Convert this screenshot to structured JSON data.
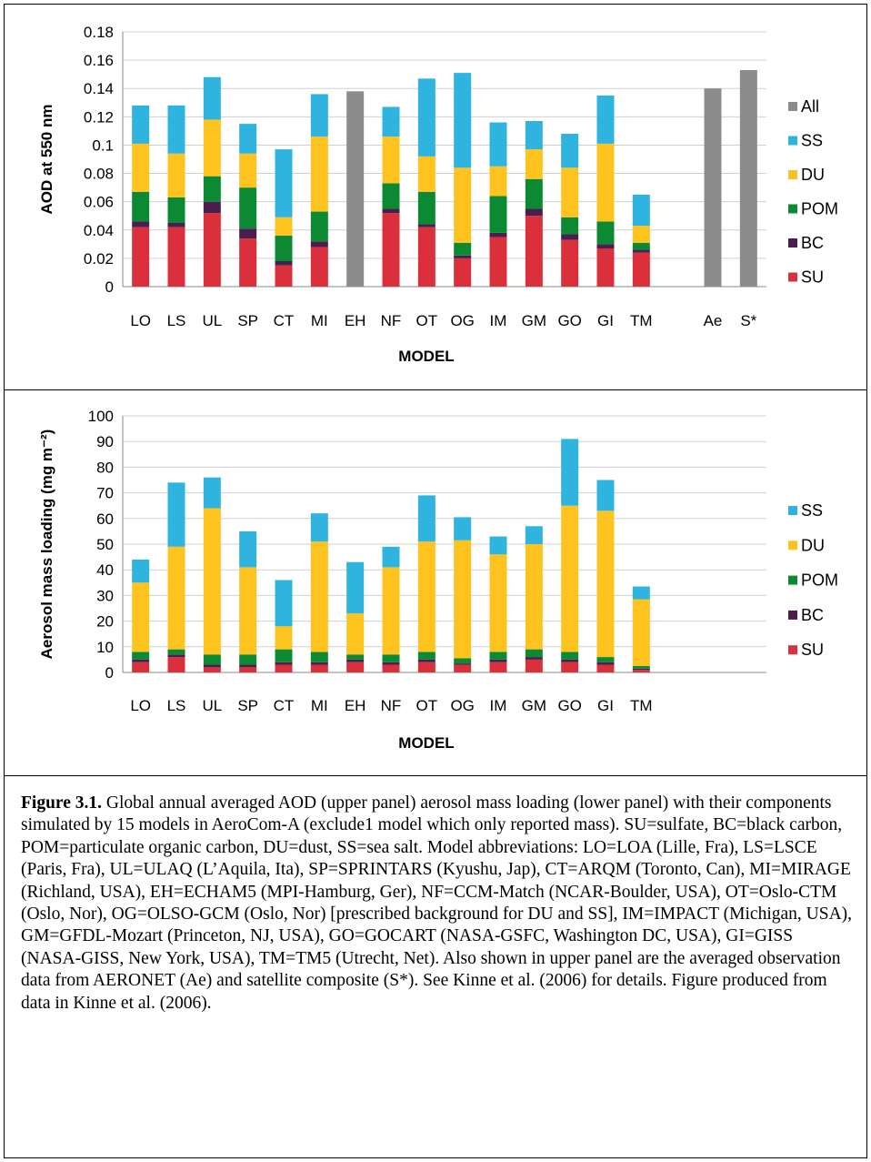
{
  "colors": {
    "All": "#8c8c8c",
    "SS": "#2fb3df",
    "DU": "#ffc31f",
    "POM": "#0c8a33",
    "BC": "#4a1f4f",
    "SU": "#d9303c",
    "grid": "#d0d0d0"
  },
  "chart_data": [
    {
      "type": "bar",
      "stacked": true,
      "categories": [
        "LO",
        "LS",
        "UL",
        "SP",
        "CT",
        "MI",
        "EH",
        "NF",
        "OT",
        "OG",
        "IM",
        "GM",
        "GO",
        "GI",
        "TM",
        "",
        "Ae",
        "S*"
      ],
      "ylabel": "AOD at 550 nm",
      "xlabel": "MODEL",
      "ylim": [
        0,
        0.18
      ],
      "yticks": [
        "0",
        "0.02",
        "0.04",
        "0.06",
        "0.08",
        "0.1",
        "0.12",
        "0.14",
        "0.16",
        "0.18"
      ],
      "grid": true,
      "legend_position": "right",
      "legend": [
        "All",
        "SS",
        "DU",
        "POM",
        "BC",
        "SU"
      ],
      "series": [
        {
          "name": "SU",
          "values": [
            0.042,
            0.042,
            0.052,
            0.034,
            0.015,
            0.028,
            null,
            0.052,
            0.042,
            0.02,
            0.035,
            0.05,
            0.033,
            0.027,
            0.024,
            null,
            null,
            null
          ]
        },
        {
          "name": "BC",
          "values": [
            0.004,
            0.003,
            0.008,
            0.007,
            0.003,
            0.004,
            null,
            0.003,
            0.002,
            0.002,
            0.003,
            0.005,
            0.004,
            0.003,
            0.002,
            null,
            null,
            null
          ]
        },
        {
          "name": "POM",
          "values": [
            0.021,
            0.018,
            0.018,
            0.029,
            0.018,
            0.021,
            null,
            0.018,
            0.023,
            0.009,
            0.026,
            0.021,
            0.012,
            0.016,
            0.005,
            null,
            null,
            null
          ]
        },
        {
          "name": "DU",
          "values": [
            0.034,
            0.031,
            0.04,
            0.024,
            0.013,
            0.053,
            null,
            0.033,
            0.025,
            0.053,
            0.021,
            0.021,
            0.035,
            0.055,
            0.012,
            null,
            null,
            null
          ]
        },
        {
          "name": "SS",
          "values": [
            0.027,
            0.034,
            0.03,
            0.021,
            0.048,
            0.03,
            null,
            0.021,
            0.055,
            0.067,
            0.031,
            0.02,
            0.024,
            0.034,
            0.022,
            null,
            null,
            null
          ]
        },
        {
          "name": "All",
          "values": [
            null,
            null,
            null,
            null,
            null,
            null,
            0.138,
            null,
            null,
            null,
            null,
            null,
            null,
            null,
            null,
            null,
            0.14,
            0.153
          ]
        }
      ]
    },
    {
      "type": "bar",
      "stacked": true,
      "categories": [
        "LO",
        "LS",
        "UL",
        "SP",
        "CT",
        "MI",
        "EH",
        "NF",
        "OT",
        "OG",
        "IM",
        "GM",
        "GO",
        "GI",
        "TM",
        "",
        "",
        ""
      ],
      "ylabel": "Aerosol mass loading (mg m⁻²)",
      "xlabel": "MODEL",
      "ylim": [
        0,
        100
      ],
      "yticks": [
        "0",
        "10",
        "20",
        "30",
        "40",
        "50",
        "60",
        "70",
        "80",
        "90",
        "100"
      ],
      "grid": true,
      "legend_position": "right",
      "legend": [
        "SS",
        "DU",
        "POM",
        "BC",
        "SU"
      ],
      "series": [
        {
          "name": "SU",
          "values": [
            4,
            6,
            2,
            2,
            3,
            3,
            4,
            3,
            4,
            3,
            4,
            5,
            4,
            3,
            1,
            null,
            null,
            null
          ]
        },
        {
          "name": "BC",
          "values": [
            1,
            1,
            1,
            1,
            1,
            1,
            1,
            1,
            1,
            0.5,
            1,
            1,
            1,
            1,
            0.5,
            null,
            null,
            null
          ]
        },
        {
          "name": "POM",
          "values": [
            3,
            2,
            4,
            4,
            5,
            4,
            2,
            3,
            3,
            2,
            3,
            3,
            3,
            2,
            1,
            null,
            null,
            null
          ]
        },
        {
          "name": "DU",
          "values": [
            27,
            40,
            57,
            34,
            9,
            43,
            16,
            34,
            43,
            46,
            38,
            41,
            57,
            57,
            26,
            null,
            null,
            null
          ]
        },
        {
          "name": "SS",
          "values": [
            9,
            25,
            12,
            14,
            18,
            11,
            20,
            8,
            18,
            9,
            7,
            7,
            26,
            12,
            5,
            null,
            null,
            null
          ]
        }
      ]
    }
  ],
  "caption": {
    "label": "Figure 3.1.",
    "text": " Global annual averaged AOD (upper panel) aerosol mass loading (lower panel) with their components simulated by 15 models in AeroCom-A (exclude1 model which only reported mass). SU=sulfate, BC=black carbon, POM=particulate organic carbon, DU=dust, SS=sea salt. Model abbreviations: LO=LOA (Lille, Fra), LS=LSCE (Paris, Fra), UL=ULAQ (L’Aquila, Ita), SP=SPRINTARS (Kyushu, Jap), CT=ARQM (Toronto, Can), MI=MIRAGE (Richland, USA), EH=ECHAM5 (MPI-Hamburg, Ger), NF=CCM-Match (NCAR-Boulder, USA), OT=Oslo-CTM (Oslo, Nor), OG=OLSO-GCM (Oslo, Nor) [prescribed background for DU and SS], IM=IMPACT (Michigan, USA), GM=GFDL-Mozart (Princeton, NJ, USA), GO=GOCART (NASA-GSFC, Washington DC, USA), GI=GISS (NASA-GISS, New York, USA), TM=TM5 (Utrecht, Net). Also shown in upper panel are the averaged observation data from AERONET (Ae) and satellite composite (S*). See Kinne et al. (2006) for details. Figure produced from data in Kinne et al. (2006)."
  }
}
